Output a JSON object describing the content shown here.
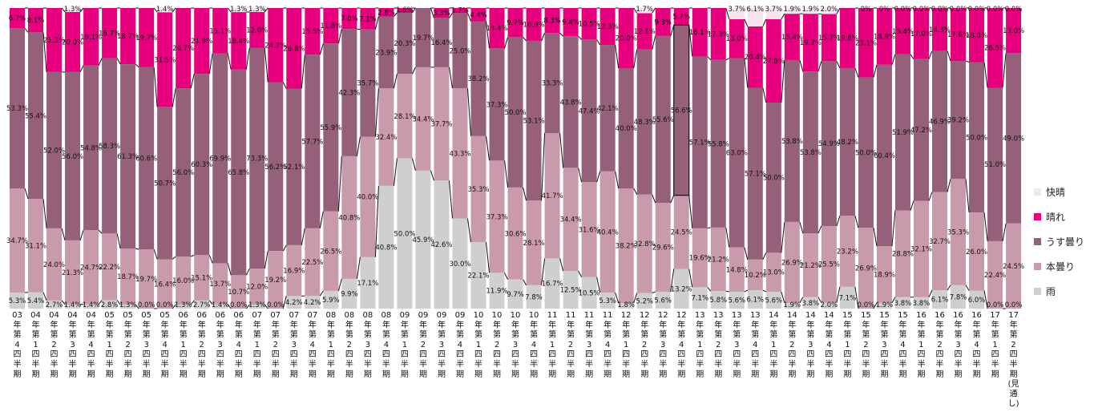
{
  "chart_data": {
    "type": "bar",
    "stacked": true,
    "percent": true,
    "ylim": [
      0,
      100
    ],
    "legend_position": "right",
    "categories": [
      [
        "03",
        "年",
        "第",
        "4",
        "四",
        "半",
        "期"
      ],
      [
        "04",
        "年",
        "第",
        "1",
        "四",
        "半",
        "期"
      ],
      [
        "04",
        "年",
        "第",
        "2",
        "四",
        "半",
        "期"
      ],
      [
        "04",
        "年",
        "第",
        "3",
        "四",
        "半",
        "期"
      ],
      [
        "04",
        "年",
        "第",
        "4",
        "四",
        "半",
        "期"
      ],
      [
        "05",
        "年",
        "第",
        "1",
        "四",
        "半",
        "期"
      ],
      [
        "05",
        "年",
        "第",
        "2",
        "四",
        "半",
        "期"
      ],
      [
        "05",
        "年",
        "第",
        "3",
        "四",
        "半",
        "期"
      ],
      [
        "05",
        "年",
        "第",
        "4",
        "四",
        "半",
        "期"
      ],
      [
        "06",
        "年",
        "第",
        "1",
        "四",
        "半",
        "期"
      ],
      [
        "06",
        "年",
        "第",
        "2",
        "四",
        "半",
        "期"
      ],
      [
        "06",
        "年",
        "第",
        "3",
        "四",
        "半",
        "期"
      ],
      [
        "06",
        "年",
        "第",
        "4",
        "四",
        "半",
        "期"
      ],
      [
        "07",
        "年",
        "第",
        "1",
        "四",
        "半",
        "期"
      ],
      [
        "07",
        "年",
        "第",
        "2",
        "四",
        "半",
        "期"
      ],
      [
        "07",
        "年",
        "第",
        "3",
        "四",
        "半",
        "期"
      ],
      [
        "07",
        "年",
        "第",
        "4",
        "四",
        "半",
        "期"
      ],
      [
        "08",
        "年",
        "第",
        "1",
        "四",
        "半",
        "期"
      ],
      [
        "08",
        "年",
        "第",
        "2",
        "四",
        "半",
        "期"
      ],
      [
        "08",
        "年",
        "第",
        "3",
        "四",
        "半",
        "期"
      ],
      [
        "08",
        "年",
        "第",
        "4",
        "四",
        "半",
        "期"
      ],
      [
        "09",
        "年",
        "第",
        "1",
        "四",
        "半",
        "期"
      ],
      [
        "09",
        "年",
        "第",
        "2",
        "四",
        "半",
        "期"
      ],
      [
        "09",
        "年",
        "第",
        "3",
        "四",
        "半",
        "期"
      ],
      [
        "09",
        "年",
        "第",
        "4",
        "四",
        "半",
        "期"
      ],
      [
        "10",
        "年",
        "第",
        "1",
        "四",
        "半",
        "期"
      ],
      [
        "10",
        "年",
        "第",
        "2",
        "四",
        "半",
        "期"
      ],
      [
        "10",
        "年",
        "第",
        "3",
        "四",
        "半",
        "期"
      ],
      [
        "10",
        "年",
        "第",
        "4",
        "四",
        "半",
        "期"
      ],
      [
        "11",
        "年",
        "第",
        "1",
        "四",
        "半",
        "期"
      ],
      [
        "11",
        "年",
        "第",
        "2",
        "四",
        "半",
        "期"
      ],
      [
        "11",
        "年",
        "第",
        "3",
        "四",
        "半",
        "期"
      ],
      [
        "11",
        "年",
        "第",
        "4",
        "四",
        "半",
        "期"
      ],
      [
        "12",
        "年",
        "第",
        "1",
        "四",
        "半",
        "期"
      ],
      [
        "12",
        "年",
        "第",
        "2",
        "四",
        "半",
        "期"
      ],
      [
        "12",
        "年",
        "第",
        "3",
        "四",
        "半",
        "期"
      ],
      [
        "12",
        "年",
        "第",
        "4",
        "四",
        "半",
        "期"
      ],
      [
        "13",
        "年",
        "第",
        "1",
        "四",
        "半",
        "期"
      ],
      [
        "13",
        "年",
        "第",
        "2",
        "四",
        "半",
        "期"
      ],
      [
        "13",
        "年",
        "第",
        "3",
        "四",
        "半",
        "期"
      ],
      [
        "13",
        "年",
        "第",
        "4",
        "四",
        "半",
        "期"
      ],
      [
        "14",
        "年",
        "第",
        "1",
        "四",
        "半",
        "期"
      ],
      [
        "14",
        "年",
        "第",
        "2",
        "四",
        "半",
        "期"
      ],
      [
        "14",
        "年",
        "第",
        "3",
        "四",
        "半",
        "期"
      ],
      [
        "14",
        "年",
        "第",
        "4",
        "四",
        "半",
        "期"
      ],
      [
        "15",
        "年",
        "第",
        "1",
        "四",
        "半",
        "期"
      ],
      [
        "15",
        "年",
        "第",
        "2",
        "四",
        "半",
        "期"
      ],
      [
        "15",
        "年",
        "第",
        "3",
        "四",
        "半",
        "期"
      ],
      [
        "15",
        "年",
        "第",
        "4",
        "四",
        "半",
        "期"
      ],
      [
        "16",
        "年",
        "第",
        "1",
        "四",
        "半",
        "期"
      ],
      [
        "16",
        "年",
        "第",
        "2",
        "四",
        "半",
        "期"
      ],
      [
        "16",
        "年",
        "第",
        "3",
        "四",
        "半",
        "期"
      ],
      [
        "16",
        "年",
        "第",
        "4",
        "四",
        "半",
        "期"
      ],
      [
        "17",
        "年",
        "第",
        "1",
        "四",
        "半",
        "期"
      ],
      [
        "17",
        "年",
        "第",
        "2",
        "四",
        "半",
        "期",
        "(見",
        "通",
        "し)"
      ]
    ],
    "series": [
      {
        "name": "雨",
        "color": "#cfcfcf",
        "values": [
          5.3,
          5.4,
          2.7,
          1.4,
          1.4,
          2.8,
          1.3,
          0.0,
          0.0,
          1.3,
          2.7,
          1.4,
          0.0,
          1.3,
          0.0,
          4.2,
          4.2,
          5.9,
          9.9,
          17.1,
          40.8,
          50.0,
          45.9,
          42.6,
          30.0,
          22.1,
          11.9,
          9.7,
          7.8,
          16.7,
          12.5,
          10.5,
          5.3,
          1.8,
          5.2,
          5.6,
          13.2,
          7.1,
          5.8,
          5.6,
          6.1,
          5.6,
          1.9,
          3.8,
          2.0,
          7.1,
          0.0,
          1.9,
          3.8,
          3.8,
          6.1,
          7.8,
          6.0,
          0.0,
          0.0
        ]
      },
      {
        "name": "本曇り",
        "color": "#c99aac",
        "values": [
          34.7,
          31.1,
          24.0,
          21.3,
          24.7,
          22.2,
          18.7,
          19.7,
          16.4,
          16.0,
          15.1,
          13.7,
          10.7,
          12.0,
          19.2,
          16.9,
          22.5,
          26.5,
          40.8,
          40.0,
          32.4,
          28.1,
          34.4,
          37.7,
          43.3,
          35.3,
          37.3,
          30.6,
          28.1,
          41.7,
          34.4,
          31.6,
          40.4,
          38.2,
          32.8,
          29.6,
          24.5,
          19.6,
          21.2,
          14.8,
          10.2,
          13.0,
          26.9,
          21.2,
          25.5,
          23.2,
          26.9,
          18.9,
          28.8,
          32.1,
          32.7,
          35.3,
          26.0,
          22.4,
          24.5
        ]
      },
      {
        "name": "うす曇り",
        "color": "#956079",
        "values": [
          53.3,
          55.4,
          52.0,
          56.0,
          54.8,
          58.3,
          61.3,
          60.6,
          50.7,
          56.0,
          60.3,
          69.9,
          65.8,
          73.3,
          56.2,
          52.1,
          57.7,
          55.9,
          42.3,
          35.7,
          23.9,
          20.3,
          19.7,
          16.4,
          25.0,
          38.2,
          37.3,
          50.0,
          53.1,
          33.3,
          43.8,
          47.4,
          42.1,
          40.0,
          48.3,
          55.6,
          56.6,
          57.1,
          55.8,
          63.0,
          57.1,
          50.0,
          53.8,
          53.8,
          54.9,
          48.2,
          50.0,
          60.4,
          51.9,
          47.2,
          46.9,
          39.2,
          50.0,
          51.0,
          49.0
        ]
      },
      {
        "name": "晴れ",
        "color": "#e6007e",
        "values": [
          6.7,
          8.1,
          21.3,
          20.0,
          19.1,
          16.7,
          18.7,
          19.7,
          31.5,
          26.7,
          21.9,
          15.1,
          18.4,
          12.0,
          24.7,
          26.8,
          15.5,
          11.8,
          7.0,
          7.1,
          2.8,
          1.6,
          0.0,
          3.3,
          1.7,
          4.4,
          13.4,
          9.7,
          10.9,
          8.3,
          9.4,
          10.5,
          12.3,
          20.0,
          12.1,
          9.3,
          5.7,
          16.1,
          17.3,
          13.0,
          20.4,
          27.8,
          15.4,
          19.2,
          15.7,
          19.6,
          23.1,
          18.9,
          15.4,
          17.0,
          14.3,
          17.6,
          18.0,
          26.5,
          13.0
        ]
      },
      {
        "name": "快晴",
        "color": "#f8e4ec",
        "values": [
          0.0,
          0.0,
          0.0,
          1.3,
          0.0,
          0.0,
          0.0,
          0.0,
          1.4,
          0.0,
          0.0,
          0.0,
          1.3,
          1.3,
          0.0,
          0.0,
          0.0,
          0.0,
          0.0,
          0.0,
          0.0,
          0.0,
          0.0,
          0.0,
          0.0,
          0.0,
          0.0,
          0.0,
          0.0,
          0.0,
          0.0,
          0.0,
          0.0,
          0.0,
          1.7,
          0.0,
          0.0,
          0.0,
          0.0,
          3.7,
          6.1,
          3.7,
          1.9,
          1.9,
          2.0,
          0.0,
          0.0,
          0.0,
          0.0,
          0.0,
          0.0,
          0.0,
          0.0,
          0.0,
          0.0
        ]
      }
    ],
    "data_labels": [
      [
        "5.3%",
        "34.7%",
        "53.3%",
        "6.7%",
        ""
      ],
      [
        "5.4%",
        "31.1%",
        "55.4%",
        "8.1%",
        ""
      ],
      [
        "2.7%",
        "24.0%",
        "52.0%",
        "21.3%",
        ""
      ],
      [
        "1.4%",
        "21.3%",
        "56.0%",
        "20.0%",
        "1.3%"
      ],
      [
        "1.4%",
        "24.7%",
        "54.8%",
        "19.1%",
        ""
      ],
      [
        "2.8%",
        "22.2%",
        "58.3%",
        "16.7%",
        ""
      ],
      [
        "1.3%",
        "18.7%",
        "61.3%",
        "18.7%",
        ""
      ],
      [
        "0.0%",
        "19.7%",
        "60.6%",
        "19.7%",
        ""
      ],
      [
        "0.0%",
        "16.4%",
        "50.7%",
        "31.5%",
        "1.4%"
      ],
      [
        "1.3%",
        "16.0%",
        "56.0%",
        "26.7%",
        ""
      ],
      [
        "2.7%",
        "15.1%",
        "60.3%",
        "21.9%",
        ""
      ],
      [
        "1.4%",
        "13.7%",
        "69.9%",
        "15.1%",
        ""
      ],
      [
        "0.0%",
        "10.7%",
        "65.8%",
        "18.4%",
        "1.3%"
      ],
      [
        "1.3%",
        "12.0%",
        "73.3%",
        "12.0%",
        "1.3%"
      ],
      [
        "0.0%",
        "19.2%",
        "56.2%",
        "24.7%",
        ""
      ],
      [
        "4.2%",
        "16.9%",
        "52.1%",
        "26.8%",
        ""
      ],
      [
        "4.2%",
        "22.5%",
        "57.7%",
        "15.5%",
        ""
      ],
      [
        "5.9%",
        "26.5%",
        "55.9%",
        "11.8%",
        ""
      ],
      [
        "9.9%",
        "40.8%",
        "42.3%",
        "7.0%",
        ""
      ],
      [
        "17.1%",
        "40.0%",
        "35.7%",
        "7.1%",
        ""
      ],
      [
        "40.8%",
        "32.4%",
        "23.9%",
        "2.8%",
        ""
      ],
      [
        "50.0%",
        "28.1%",
        "20.3%",
        "1.6%",
        ""
      ],
      [
        "45.9%",
        "34.4%",
        "19.7%",
        "",
        ""
      ],
      [
        "42.6%",
        "37.7%",
        "16.4%",
        "3.3%",
        ""
      ],
      [
        "30.0%",
        "43.3%",
        "25.0%",
        "1.7%",
        ""
      ],
      [
        "22.1%",
        "35.3%",
        "38.2%",
        "4.4%",
        ""
      ],
      [
        "11.9%",
        "37.3%",
        "37.3%",
        "13.4%",
        ""
      ],
      [
        "9.7%",
        "30.6%",
        "50.0%",
        "9.7%",
        ""
      ],
      [
        "7.8%",
        "28.1%",
        "53.1%",
        "10.9%",
        ""
      ],
      [
        "16.7%",
        "41.7%",
        "33.3%",
        "8.3%",
        ""
      ],
      [
        "12.5%",
        "34.4%",
        "43.8%",
        "9.4%",
        ""
      ],
      [
        "10.5%",
        "31.6%",
        "47.4%",
        "10.5%",
        ""
      ],
      [
        "5.3%",
        "40.4%",
        "42.1%",
        "12.3%",
        ""
      ],
      [
        "1.8%",
        "38.2%",
        "40.0%",
        "20.0%",
        ""
      ],
      [
        "5.2%",
        "32.8%",
        "48.3%",
        "12.1%",
        "1.7%"
      ],
      [
        "5.6%",
        "29.6%",
        "55.6%",
        "9.3%",
        ""
      ],
      [
        "13.2%",
        "24.5%",
        "56.6%",
        "5.7%",
        ""
      ],
      [
        "7.1%",
        "19.6%",
        "57.1%",
        "16.1%",
        ""
      ],
      [
        "5.8%",
        "21.2%",
        "55.8%",
        "17.3%",
        ""
      ],
      [
        "5.6%",
        "14.8%",
        "63.0%",
        "13.0%",
        "3.7%"
      ],
      [
        "6.1%",
        "10.2%",
        "57.1%",
        "20.4%",
        "6.1%"
      ],
      [
        "5.6%",
        "13.0%",
        "50.0%",
        "27.8%",
        "3.7%"
      ],
      [
        "1.9%",
        "26.9%",
        "53.8%",
        "15.4%",
        "1.9%"
      ],
      [
        "3.8%",
        "21.2%",
        "53.8%",
        "19.2%",
        "1.9%"
      ],
      [
        "2.0%",
        "25.5%",
        "54.9%",
        "15.7%",
        "2.0%"
      ],
      [
        "7.1%",
        "23.2%",
        "48.2%",
        "19.6%",
        ""
      ],
      [
        "0.0%",
        "26.9%",
        "50.0%",
        "23.1%",
        "0%"
      ],
      [
        "1.9%",
        "18.9%",
        "60.4%",
        "18.9%",
        "0%"
      ],
      [
        "3.8%",
        "28.8%",
        "51.9%",
        "15.4%",
        "0.0%"
      ],
      [
        "3.8%",
        "32.1%",
        "47.2%",
        "17.0%",
        "0.0%"
      ],
      [
        "6.1%",
        "32.7%",
        "46.9%",
        "14.3%",
        "0.0%"
      ],
      [
        "7.8%",
        "35.3%",
        "39.2%",
        "17.6%",
        "0.0%"
      ],
      [
        "6.0%",
        "26.0%",
        "50.0%",
        "18.0%",
        "0.0%"
      ],
      [
        "0.0%",
        "22.4%",
        "51.0%",
        "26.5%",
        "0.0%"
      ],
      [
        "0.0%",
        "24.5%",
        "49.0%",
        "13.0%",
        "0.0%"
      ]
    ],
    "highlight_index": 36,
    "legend": [
      {
        "name": "快晴",
        "color": "#f8e4ec"
      },
      {
        "name": "晴れ",
        "color": "#e6007e"
      },
      {
        "name": "うす曇り",
        "color": "#956079"
      },
      {
        "name": "本曇り",
        "color": "#c99aac"
      },
      {
        "name": "雨",
        "color": "#cfcfcf"
      }
    ]
  }
}
